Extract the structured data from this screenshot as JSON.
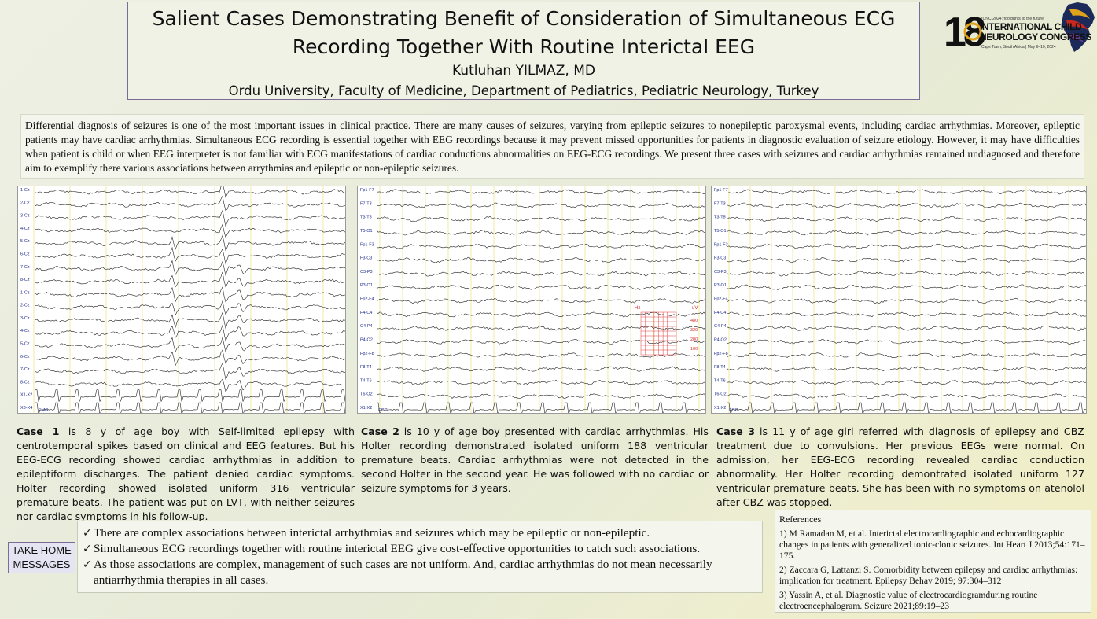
{
  "header": {
    "title_line1": "Salient Cases Demonstrating Benefit of Consideration of Simultaneous ECG",
    "title_line2": "Recording Together With Routine Interictal EEG",
    "author": "Kutluhan YILMAZ, MD",
    "affiliation": "Ordu University, Faculty of Medicine, Department of Pediatrics, Pediatric Neurology, Turkey"
  },
  "logo": {
    "number": "18",
    "tagline": "ICNC 2024: footprints to the future",
    "line1": "INTERNATIONAL CHILD",
    "line2": "NEUROLOGY CONGRESS",
    "location": "Cape Town, South Africa | May 6–10, 2024",
    "colors": {
      "gold": "#e0a21a",
      "red": "#c8281e",
      "navy": "#1c2a5a",
      "purple": "#6c3a8e",
      "black": "#111111"
    }
  },
  "intro": "Differential diagnosis of seizures is one of the most important issues in clinical practice. There are many causes of seizures, varying from epileptic seizures to nonepileptic paroxysmal events, including cardiac arrhythmias. Moreover, epileptic patients may have cardiac arrhythmias. Simultaneous ECG recording is essential together with EEG recordings because it may prevent missed opportunities for patients in diagnostic evaluation of seizure etiology. However, it may have difficulties when patient is child or when EEG interpreter is not familiar with ECG manifestations of cardiac conductions abnormalities on EEG-ECG recordings. We present three cases with seizures and cardiac arrhythmias remained undiagnosed and therefore aim to exemplify there various associations between arrythmias and epileptic or non-epileptic seizures.",
  "eeg": {
    "panel1": {
      "channels": [
        "1-Cz",
        "2-Cz",
        "3-Cz",
        "4-Cz",
        "5-Cz",
        "6-Cz",
        "7-Cz",
        "8-Cz",
        "1-Cz",
        "2-Cz",
        "3-Cz",
        "4-Cz",
        "5-Cz",
        "6-Cz",
        "7-Cz",
        "8-Cz",
        "X1-X2",
        "X3-X4"
      ],
      "emg_label": "EMG"
    },
    "panel2": {
      "channels": [
        "Fp1-F7",
        "F7-T3",
        "T3-T5",
        "T5-O1",
        "Fp1-F3",
        "F3-C3",
        "C3-P3",
        "P3-O1",
        "Fp2-F4",
        "F4-C4",
        "C4-P4",
        "P4-O2",
        "Fp2-F8",
        "F8-T4",
        "T4-T6",
        "T6-O2",
        "X1-X2"
      ],
      "ecg_label": "ECG",
      "overlay_left": "Hz",
      "overlay_right": "uV",
      "overlay_numbers": [
        "480",
        "320",
        "200",
        "100"
      ]
    },
    "panel3": {
      "channels": [
        "Fp1-F7",
        "F7-T3",
        "T3-T5",
        "T5-O1",
        "Fp1-F3",
        "F3-C3",
        "C3-P3",
        "P3-O1",
        "Fp2-F4",
        "F4-C4",
        "C4-P4",
        "P4-O2",
        "Fp2-F8",
        "F8-T4",
        "T4-T6",
        "T6-O2",
        "X1-X2"
      ],
      "ecg_label": "ECG"
    }
  },
  "cases": {
    "case1_label": "Case 1",
    "case1_text": " is 8 y of age boy with Self-limited epilepsy with centrotemporal spikes based on clinical and EEG features. But his EEG-ECG recording showed cardiac arrhythmias in addition to epileptiform discharges. The patient denied cardiac symptoms. Holter recording showed isolated uniform 316 ventricular premature beats. The patient was put on LVT, with neither seizures nor cardiac symptoms in his follow-up.",
    "case2_label": "Case 2",
    "case2_text": " is 10 y of age boy presented with cardiac arrhythmias. His Holter recording demonstrated isolated uniform 188 ventricular premature beats. Cardiac arrhythmias were not detected in the second Holter in the second year. He was followed with no cardiac or seizure symptoms for 3 years.",
    "case3_label": "Case 3",
    "case3_text": " is 11 y of age girl referred with diagnosis of epilepsy and CBZ treatment due to convulsions. Her previous EEGs were normal. On admission, her EEG-ECG recording revealed cardiac conduction abnormality. Her Holter recording demontrated isolated uniform 127 ventricular premature beats. She has been with no symptoms on atenolol after CBZ was stopped."
  },
  "takehome": {
    "label_line1": "TAKE HOME",
    "label_line2": "MESSAGES",
    "check_glyph": "✓",
    "items": [
      "There are complex associations between interictal arrhythmias and seizures which may be epileptic or non-epileptic.",
      "Simultaneous ECG recordings together with routine interictal EEG give cost-effective opportunities to catch such associations.",
      "As those associations are complex, management of such cases are not uniform. And, cardiac arrhythmias do not mean necessarily antiarrhythmia therapies in all cases."
    ]
  },
  "references": {
    "heading": "References",
    "items": [
      "1) M Ramadan M, et al. Interictal electrocardiographic and echocardiographic changes in patients with generalized tonic-clonic seizures. Int Heart J 2013;54:171–175.",
      "2) Zaccara G, Lattanzi S. Comorbidity between epilepsy and cardiac arrhythmias: implication for treatment. Epilepsy Behav 2019; 97:304–312",
      "3) Yassin A, et al. Diagnostic value of electrocardiogramduring routine electroencephalogram. Seizure 2021;89:19–23"
    ]
  }
}
